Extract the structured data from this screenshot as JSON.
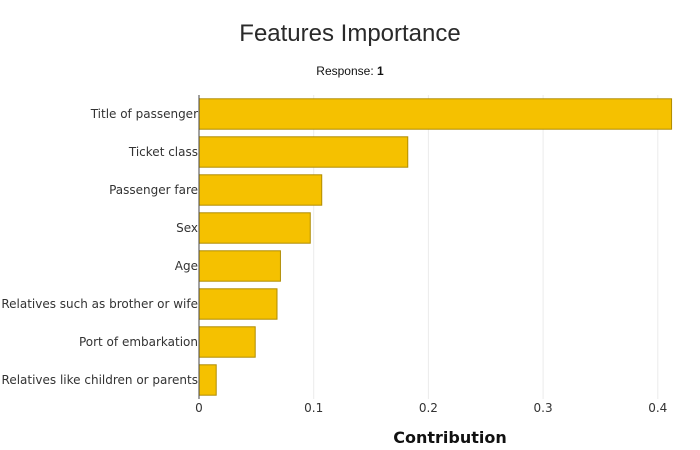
{
  "title": "Features Importance",
  "subtitle_prefix": "Response: ",
  "subtitle_value": "1",
  "colors": {
    "bar_fill": "#F5C100",
    "bar_stroke": "#B08C00",
    "grid": "#EBEBEB",
    "axis": "#444444"
  },
  "chart_data": {
    "type": "bar",
    "orientation": "horizontal",
    "categories": [
      "Title of passenger",
      "Ticket class",
      "Passenger fare",
      "Sex",
      "Age",
      "Relatives such as brother or wife",
      "Port of embarkation",
      "Relatives like children or parents"
    ],
    "values": [
      0.412,
      0.182,
      0.107,
      0.097,
      0.071,
      0.068,
      0.049,
      0.015
    ],
    "xlabel": "Contribution",
    "ylabel": "",
    "xlim": [
      0,
      0.415
    ],
    "xticks": [
      0,
      0.1,
      0.2,
      0.3,
      0.4
    ],
    "xtick_labels": [
      "0",
      "0.1",
      "0.2",
      "0.3",
      "0.4"
    ],
    "grid": true
  }
}
